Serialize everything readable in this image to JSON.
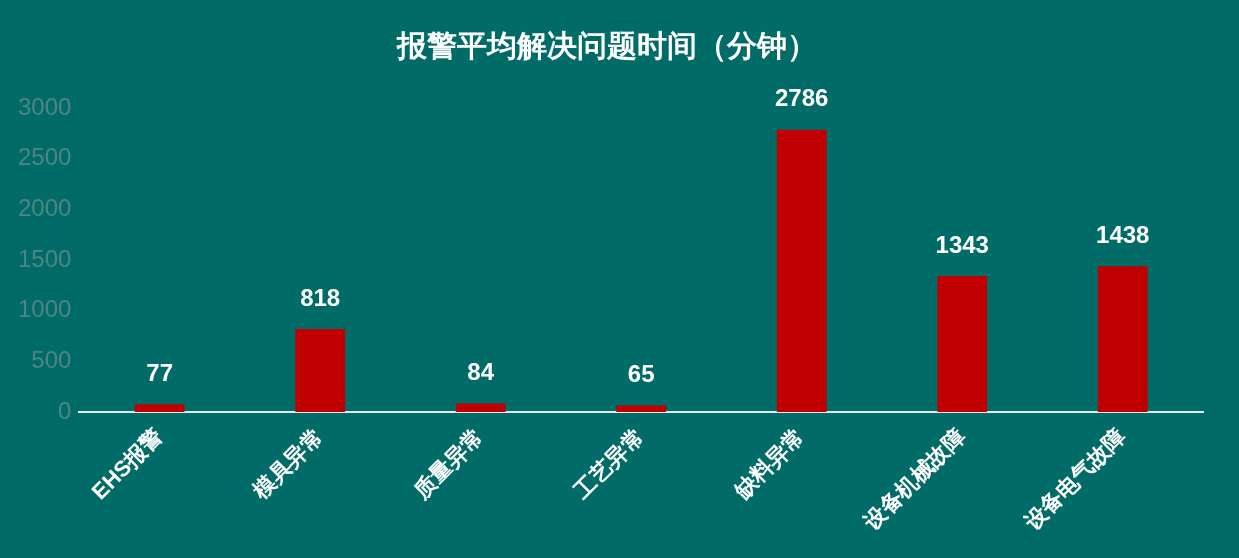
{
  "chart_data": {
    "type": "bar",
    "title": "报警平均解决问题时间（分钟）",
    "categories": [
      "EHS报警",
      "模具异常",
      "质量异常",
      "工艺异常",
      "缺料异常",
      "设备机械故障",
      "设备电气故障"
    ],
    "values": [
      77,
      818,
      84,
      65,
      2786,
      1343,
      1438
    ],
    "color": "#c00000",
    "ylim": [
      0,
      3000
    ],
    "yticks": [
      0,
      500,
      1000,
      1500,
      2000,
      2500,
      3000
    ],
    "grid": false,
    "legend": false,
    "data_labels": true
  }
}
